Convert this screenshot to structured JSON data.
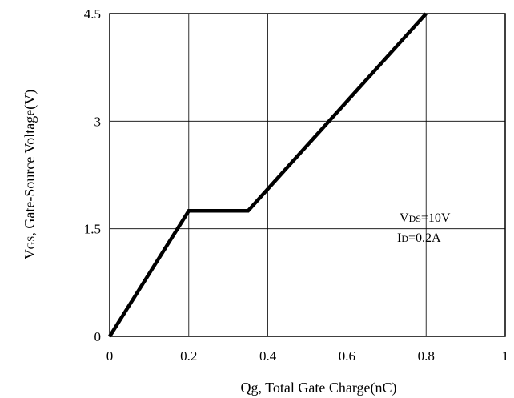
{
  "chart_data": {
    "type": "line",
    "xlabel": "Qg, Total Gate Charge(nC)",
    "ylabel": {
      "v": "V",
      "sub": "GS",
      "rest": ", Gate-Source Voltage(V)"
    },
    "xlim": [
      0,
      1
    ],
    "ylim": [
      0,
      4.5
    ],
    "x_ticks": [
      0,
      0.2,
      0.4,
      0.6,
      0.8,
      1
    ],
    "x_tick_labels": [
      "0",
      "0.2",
      "0.4",
      "0.6",
      "0.8",
      "1"
    ],
    "y_ticks": [
      0,
      1.5,
      3,
      4.5
    ],
    "y_tick_labels": [
      "0",
      "1.5",
      "3",
      "4.5"
    ],
    "grid": true,
    "series": [
      {
        "x": [
          0,
          0.2,
          0.35,
          0.8
        ],
        "y": [
          0,
          1.75,
          1.75,
          4.5
        ],
        "color": "#000000"
      }
    ],
    "annotations": [
      {
        "v": "V",
        "sub": "DS",
        "rest": "=10V"
      },
      {
        "v": "I",
        "sub": "D",
        "rest": "=0.2A"
      }
    ]
  }
}
